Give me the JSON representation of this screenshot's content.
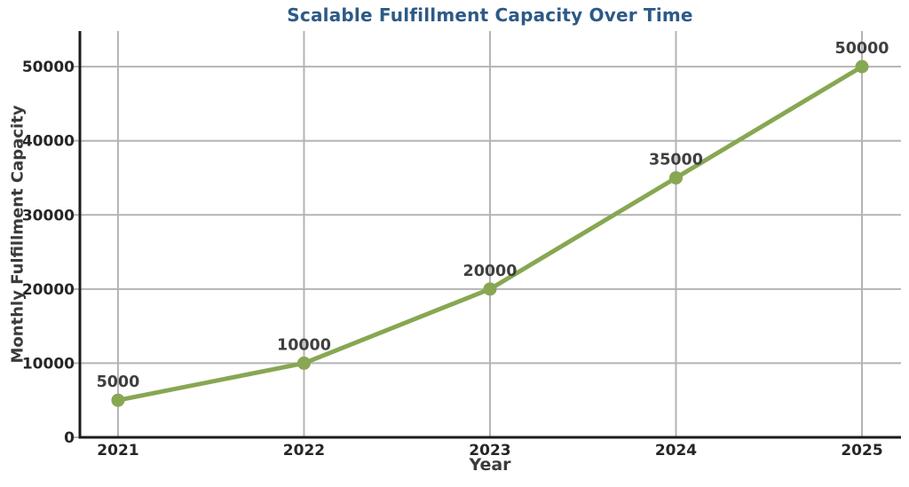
{
  "page": {
    "background": "#ffffff"
  },
  "chart_data": {
    "type": "line",
    "title": "Scalable Fulfillment Capacity Over Time",
    "xlabel": "Year",
    "ylabel": "Monthly Fulfillment Capacity",
    "categories": [
      "2021",
      "2022",
      "2023",
      "2024",
      "2025"
    ],
    "x": [
      2021,
      2022,
      2023,
      2024,
      2025
    ],
    "values": [
      5000,
      10000,
      20000,
      35000,
      50000
    ],
    "point_labels": [
      "5000",
      "10000",
      "20000",
      "35000",
      "50000"
    ],
    "yticks": [
      0,
      10000,
      20000,
      30000,
      40000,
      50000
    ],
    "ytick_labels": [
      "0",
      "10000",
      "20000",
      "30000",
      "40000",
      "50000"
    ],
    "xlim": [
      2020.795,
      2025.21
    ],
    "ylim": [
      0,
      54800
    ],
    "grid": true,
    "legend": "none",
    "colors": {
      "line": "#87a752",
      "marker": "#87a752",
      "grid": "#b4b4b4",
      "axis": "#1c1c1c",
      "title": "#2d5a86",
      "tick_label": "#262626",
      "axis_label": "#3b3b3b",
      "data_label": "#3f3f3f"
    }
  }
}
